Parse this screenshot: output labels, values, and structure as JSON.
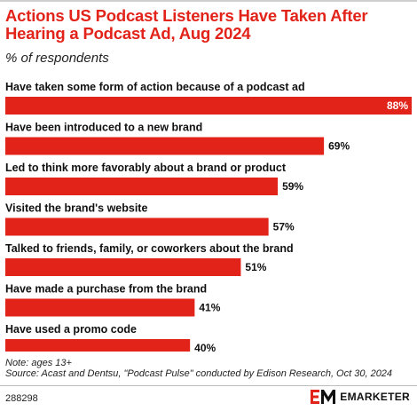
{
  "header": {
    "title": "Actions US Podcast Listeners Have Taken After Hearing a Podcast Ad, Aug 2024",
    "subtitle": "% of respondents"
  },
  "chart_data": {
    "type": "bar",
    "orientation": "horizontal",
    "categories": [
      "Have taken some form of action because of a podcast ad",
      "Have been introduced to a new brand",
      "Led to think more favorably about a brand or product",
      "Visited the brand's website",
      "Talked to friends, family, or coworkers about the brand",
      "Have made a purchase from the brand",
      "Have used a promo code"
    ],
    "values": [
      88,
      69,
      59,
      57,
      51,
      41,
      40
    ],
    "value_labels": [
      "88%",
      "69%",
      "59%",
      "57%",
      "51%",
      "41%",
      "40%"
    ],
    "xlim": [
      0,
      88
    ],
    "grid": false,
    "colors": {
      "bar": "#e2231a"
    }
  },
  "footer": {
    "note": "Note: ages 13+",
    "source": "Source: Acast and Dentsu, \"Podcast Pulse\" conducted by Edison Research, Oct 30, 2024",
    "chart_id": "288298",
    "brand": "EMARKETER",
    "brand_icon": "emarketer-logo-icon"
  },
  "colors": {
    "accent": "#e2231a"
  }
}
